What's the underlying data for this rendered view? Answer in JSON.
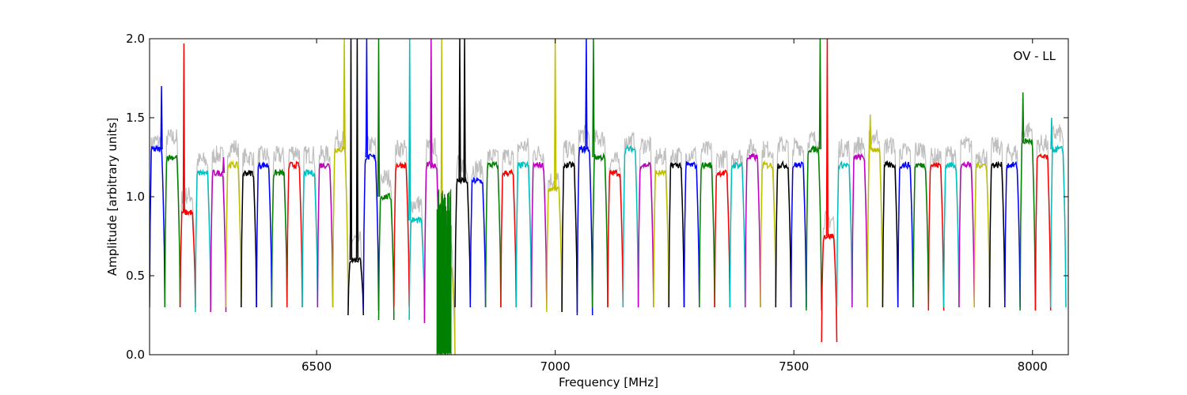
{
  "chart_data": {
    "type": "line",
    "title": "",
    "annotation": "OV - LL",
    "xlabel": "Frequency [MHz]",
    "ylabel": "Amplitude [arbitrary units]",
    "xlim": [
      6150,
      8075
    ],
    "ylim": [
      0.0,
      2.0
    ],
    "xticks": [
      6500,
      7000,
      7500,
      8000
    ],
    "xtick_labels": [
      "6500",
      "7000",
      "7500",
      "8000"
    ],
    "yticks": [
      0.0,
      0.5,
      1.0,
      1.5,
      2.0
    ],
    "ytick_labels": [
      "0.0",
      "0.5",
      "1.0",
      "1.5",
      "2.0"
    ],
    "grid": false,
    "legend": "none",
    "band_width_mhz": 32,
    "background_trace_color": "#bfbfbf",
    "color_cycle": [
      "#0000ff",
      "#008000",
      "#ff0000",
      "#00bfbf",
      "#bf00bf",
      "#bfbf00",
      "#000000"
    ],
    "band_starts": [
      6150,
      6182,
      6214,
      6246,
      6278,
      6310,
      6342,
      6374,
      6406,
      6438,
      6470,
      6502,
      6534,
      6566,
      6598,
      6630,
      6662,
      6694,
      6726,
      6758,
      6790,
      6822,
      6854,
      6886,
      6918,
      6950,
      6982,
      7014,
      7046,
      7078,
      7110,
      7142,
      7174,
      7206,
      7238,
      7270,
      7302,
      7334,
      7366,
      7398,
      7430,
      7462,
      7494,
      7526,
      7558,
      7590,
      7622,
      7654,
      7686,
      7718,
      7750,
      7782,
      7814,
      7846,
      7878,
      7910,
      7942,
      7974,
      8006,
      8038
    ],
    "band_levels": [
      1.3,
      1.25,
      0.9,
      1.15,
      1.15,
      1.2,
      1.15,
      1.2,
      1.15,
      1.2,
      1.15,
      1.2,
      1.3,
      0.6,
      1.25,
      1.0,
      1.2,
      0.85,
      1.2,
      0.55,
      1.1,
      1.1,
      1.2,
      1.15,
      1.2,
      1.2,
      1.05,
      1.2,
      1.3,
      1.25,
      1.15,
      1.3,
      1.2,
      1.15,
      1.2,
      1.2,
      1.2,
      1.15,
      1.2,
      1.25,
      1.2,
      1.2,
      1.2,
      1.3,
      0.75,
      1.2,
      1.25,
      1.3,
      1.2,
      1.2,
      1.2,
      1.2,
      1.2,
      1.2,
      1.2,
      1.2,
      1.2,
      1.35,
      1.25,
      1.3
    ],
    "band_mins": [
      0.3,
      0.3,
      0.3,
      0.27,
      0.27,
      0.3,
      0.3,
      0.3,
      0.3,
      0.3,
      0.3,
      0.3,
      0.3,
      0.25,
      0.28,
      0.22,
      0.3,
      0.22,
      0.2,
      0.0,
      0.3,
      0.3,
      0.3,
      0.3,
      0.3,
      0.3,
      0.27,
      0.27,
      0.25,
      0.3,
      0.3,
      0.3,
      0.3,
      0.3,
      0.3,
      0.3,
      0.3,
      0.3,
      0.3,
      0.3,
      0.3,
      0.3,
      0.3,
      0.28,
      0.08,
      0.3,
      0.3,
      0.3,
      0.3,
      0.3,
      0.3,
      0.28,
      0.3,
      0.3,
      0.3,
      0.3,
      0.3,
      0.28,
      0.28,
      0.3
    ],
    "spikes": [
      {
        "x": 6175,
        "y": 1.7
      },
      {
        "x": 6222,
        "y": 1.97
      },
      {
        "x": 6305,
        "y": 1.25
      },
      {
        "x": 6558,
        "y": 2.0
      },
      {
        "x": 6572,
        "y": 2.0
      },
      {
        "x": 6585,
        "y": 2.0
      },
      {
        "x": 6605,
        "y": 2.0
      },
      {
        "x": 6630,
        "y": 2.0
      },
      {
        "x": 6695,
        "y": 2.0
      },
      {
        "x": 6740,
        "y": 2.0
      },
      {
        "x": 6762,
        "y": 2.0
      },
      {
        "x": 6800,
        "y": 2.0
      },
      {
        "x": 6810,
        "y": 2.0
      },
      {
        "x": 7000,
        "y": 2.0
      },
      {
        "x": 7065,
        "y": 2.0
      },
      {
        "x": 7080,
        "y": 2.0
      },
      {
        "x": 7555,
        "y": 2.0
      },
      {
        "x": 7570,
        "y": 2.0
      },
      {
        "x": 7660,
        "y": 1.52
      },
      {
        "x": 7980,
        "y": 1.66
      },
      {
        "x": 8040,
        "y": 1.5
      }
    ],
    "noise_region": {
      "x_start": 6752,
      "x_end": 6782,
      "y_min": 0.0,
      "y_max": 1.05,
      "color": "#008000"
    }
  }
}
